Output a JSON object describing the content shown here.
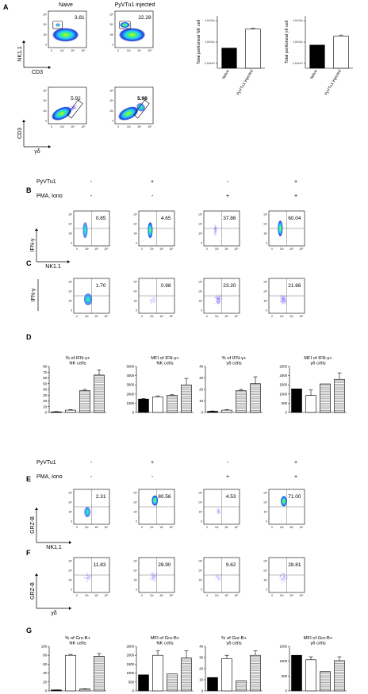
{
  "panel_labels": [
    "A",
    "B",
    "C",
    "D",
    "E",
    "F",
    "G"
  ],
  "panelA": {
    "col_titles": [
      "Naive",
      "PyVTu1 injected"
    ],
    "row1": {
      "y_label": "NK1.1",
      "x_label": "CD3",
      "values": [
        "3.81",
        "22.28"
      ]
    },
    "row2": {
      "y_label": "CD3",
      "x_label": "γδ",
      "values": [
        "5.92",
        "5.98"
      ]
    }
  },
  "conditions1": {
    "rows": [
      {
        "label": "PyVTu1",
        "signs": [
          "-",
          "+",
          "-",
          "+"
        ]
      },
      {
        "label": "PMA, Iono",
        "signs": [
          "-",
          "-",
          "+",
          "+"
        ]
      }
    ]
  },
  "conditions2": {
    "rows": [
      {
        "label": "PyVTu1",
        "signs": [
          "-",
          "+",
          "-",
          "+"
        ]
      },
      {
        "label": "PMA, Iono",
        "signs": [
          "-",
          "-",
          "+",
          "+"
        ]
      }
    ]
  },
  "panelB": {
    "y_label": "IFN-γ",
    "x_label": "NK1.1",
    "values": [
      "0.85",
      "4.65",
      "37.86",
      "60.04"
    ]
  },
  "panelC": {
    "y_label": "IFN-γ",
    "x_label": "",
    "values": [
      "1.70",
      "0.98",
      "23.20",
      "21.66"
    ]
  },
  "panelE": {
    "y_label": "GRZ-B",
    "x_label": "NK1.1",
    "values": [
      "2.31",
      "80.56",
      "4.53",
      "71.00"
    ]
  },
  "panelF": {
    "y_label": "GRZ-B",
    "x_label": "γδ",
    "values": [
      "11.83",
      "28.90",
      "9.62",
      "28.81"
    ]
  },
  "tick_labels": {
    "flow": [
      "0",
      "10³",
      "10⁴",
      "10⁵"
    ]
  },
  "colors": {
    "dense": "#1a3ad8",
    "mid": "#29c4ff",
    "core": "#3cff6a",
    "hot": "#ffe020",
    "sparse": "#7a6cff",
    "hatch": "#9a9a9a"
  },
  "chart_data": [
    {
      "type": "bar",
      "panel": "A",
      "title": "",
      "ylabel": "Total peritoneal NK cell",
      "categories": [
        "Naive",
        "PyVTu1 injected"
      ],
      "values": [
        1.0,
        1.95
      ],
      "y_ticks": [
        "1.0×10¹⁰",
        "1.0×10¹¹",
        "1.0×10¹²"
      ],
      "ylim": [
        0,
        2.6
      ],
      "scale": "log"
    },
    {
      "type": "bar",
      "panel": "A",
      "title": "",
      "ylabel": "Total peritoneal γδ cell",
      "categories": [
        "Naive",
        "PyVTu1 injected"
      ],
      "values": [
        1.15,
        1.6
      ],
      "y_ticks": [
        "1.0×10¹⁰",
        "1.0×10¹¹",
        "1.0×10¹²"
      ],
      "ylim": [
        0,
        2.6
      ],
      "scale": "log"
    },
    {
      "type": "bar",
      "panel": "D",
      "title": "% of IFN-γ+\nNK cells",
      "categories": [
        "1",
        "2",
        "3",
        "4"
      ],
      "values": [
        1,
        4,
        38,
        65
      ],
      "errors": [
        0.5,
        1,
        2,
        9
      ],
      "ylim": [
        0,
        80
      ],
      "y_ticks": [
        0,
        10,
        20,
        30,
        40,
        50,
        60,
        70,
        80
      ]
    },
    {
      "type": "bar",
      "panel": "D",
      "title": "MFI of IFN-γ+\nNK cells",
      "categories": [
        "1",
        "2",
        "3",
        "4"
      ],
      "values": [
        1450,
        1700,
        1850,
        3000
      ],
      "errors": [
        60,
        100,
        80,
        700
      ],
      "ylim": [
        0,
        5000
      ],
      "y_ticks": [
        0,
        1000,
        2000,
        3000,
        4000,
        5000
      ]
    },
    {
      "type": "bar",
      "panel": "D",
      "title": "% of IFN-γ+\nγδ cells",
      "categories": [
        "1",
        "2",
        "3",
        "4"
      ],
      "values": [
        1,
        2,
        19,
        25
      ],
      "errors": [
        0.3,
        0.5,
        1,
        6
      ],
      "ylim": [
        0,
        40
      ],
      "y_ticks": [
        0,
        10,
        20,
        30,
        40
      ]
    },
    {
      "type": "bar",
      "panel": "D",
      "title": "MFI of IFN-γ+\nγδ cells",
      "categories": [
        "1",
        "2",
        "3",
        "4"
      ],
      "values": [
        1280,
        920,
        1550,
        1800
      ],
      "errors": [
        0,
        300,
        0,
        350
      ],
      "ylim": [
        0,
        2500
      ],
      "y_ticks": [
        0,
        500,
        1000,
        1500,
        2000,
        2500
      ]
    },
    {
      "type": "bar",
      "panel": "G",
      "title": "% of Grz-B+\nNK cells",
      "categories": [
        "1",
        "2",
        "3",
        "4"
      ],
      "values": [
        2,
        80,
        4,
        78
      ],
      "errors": [
        0.3,
        2,
        0.5,
        6
      ],
      "ylim": [
        0,
        100
      ],
      "y_ticks": [
        0,
        20,
        40,
        60,
        80,
        100
      ]
    },
    {
      "type": "bar",
      "panel": "G",
      "title": "MFI of Grz-B+\nNK cells",
      "categories": [
        "1",
        "2",
        "3",
        "4"
      ],
      "values": [
        900,
        2000,
        950,
        1850
      ],
      "errors": [
        0,
        250,
        0,
        400
      ],
      "ylim": [
        0,
        2500
      ],
      "y_ticks": [
        0,
        500,
        1000,
        1500,
        2000,
        2500
      ]
    },
    {
      "type": "bar",
      "panel": "G",
      "title": "% of Grz-B+\nγδ cells",
      "categories": [
        "1",
        "2",
        "3",
        "4"
      ],
      "values": [
        12,
        29,
        9,
        32
      ],
      "errors": [
        0,
        3,
        0,
        4
      ],
      "ylim": [
        0,
        40
      ],
      "y_ticks": [
        0,
        10,
        20,
        30,
        40
      ]
    },
    {
      "type": "bar",
      "panel": "G",
      "title": "MFI of Grz-B+\nγδ cells",
      "categories": [
        "1",
        "2",
        "3",
        "4"
      ],
      "values": [
        1200,
        1050,
        650,
        1020
      ],
      "errors": [
        0,
        100,
        0,
        130
      ],
      "ylim": [
        0,
        1500
      ],
      "y_ticks": [
        0,
        500,
        1000,
        1500
      ]
    }
  ]
}
